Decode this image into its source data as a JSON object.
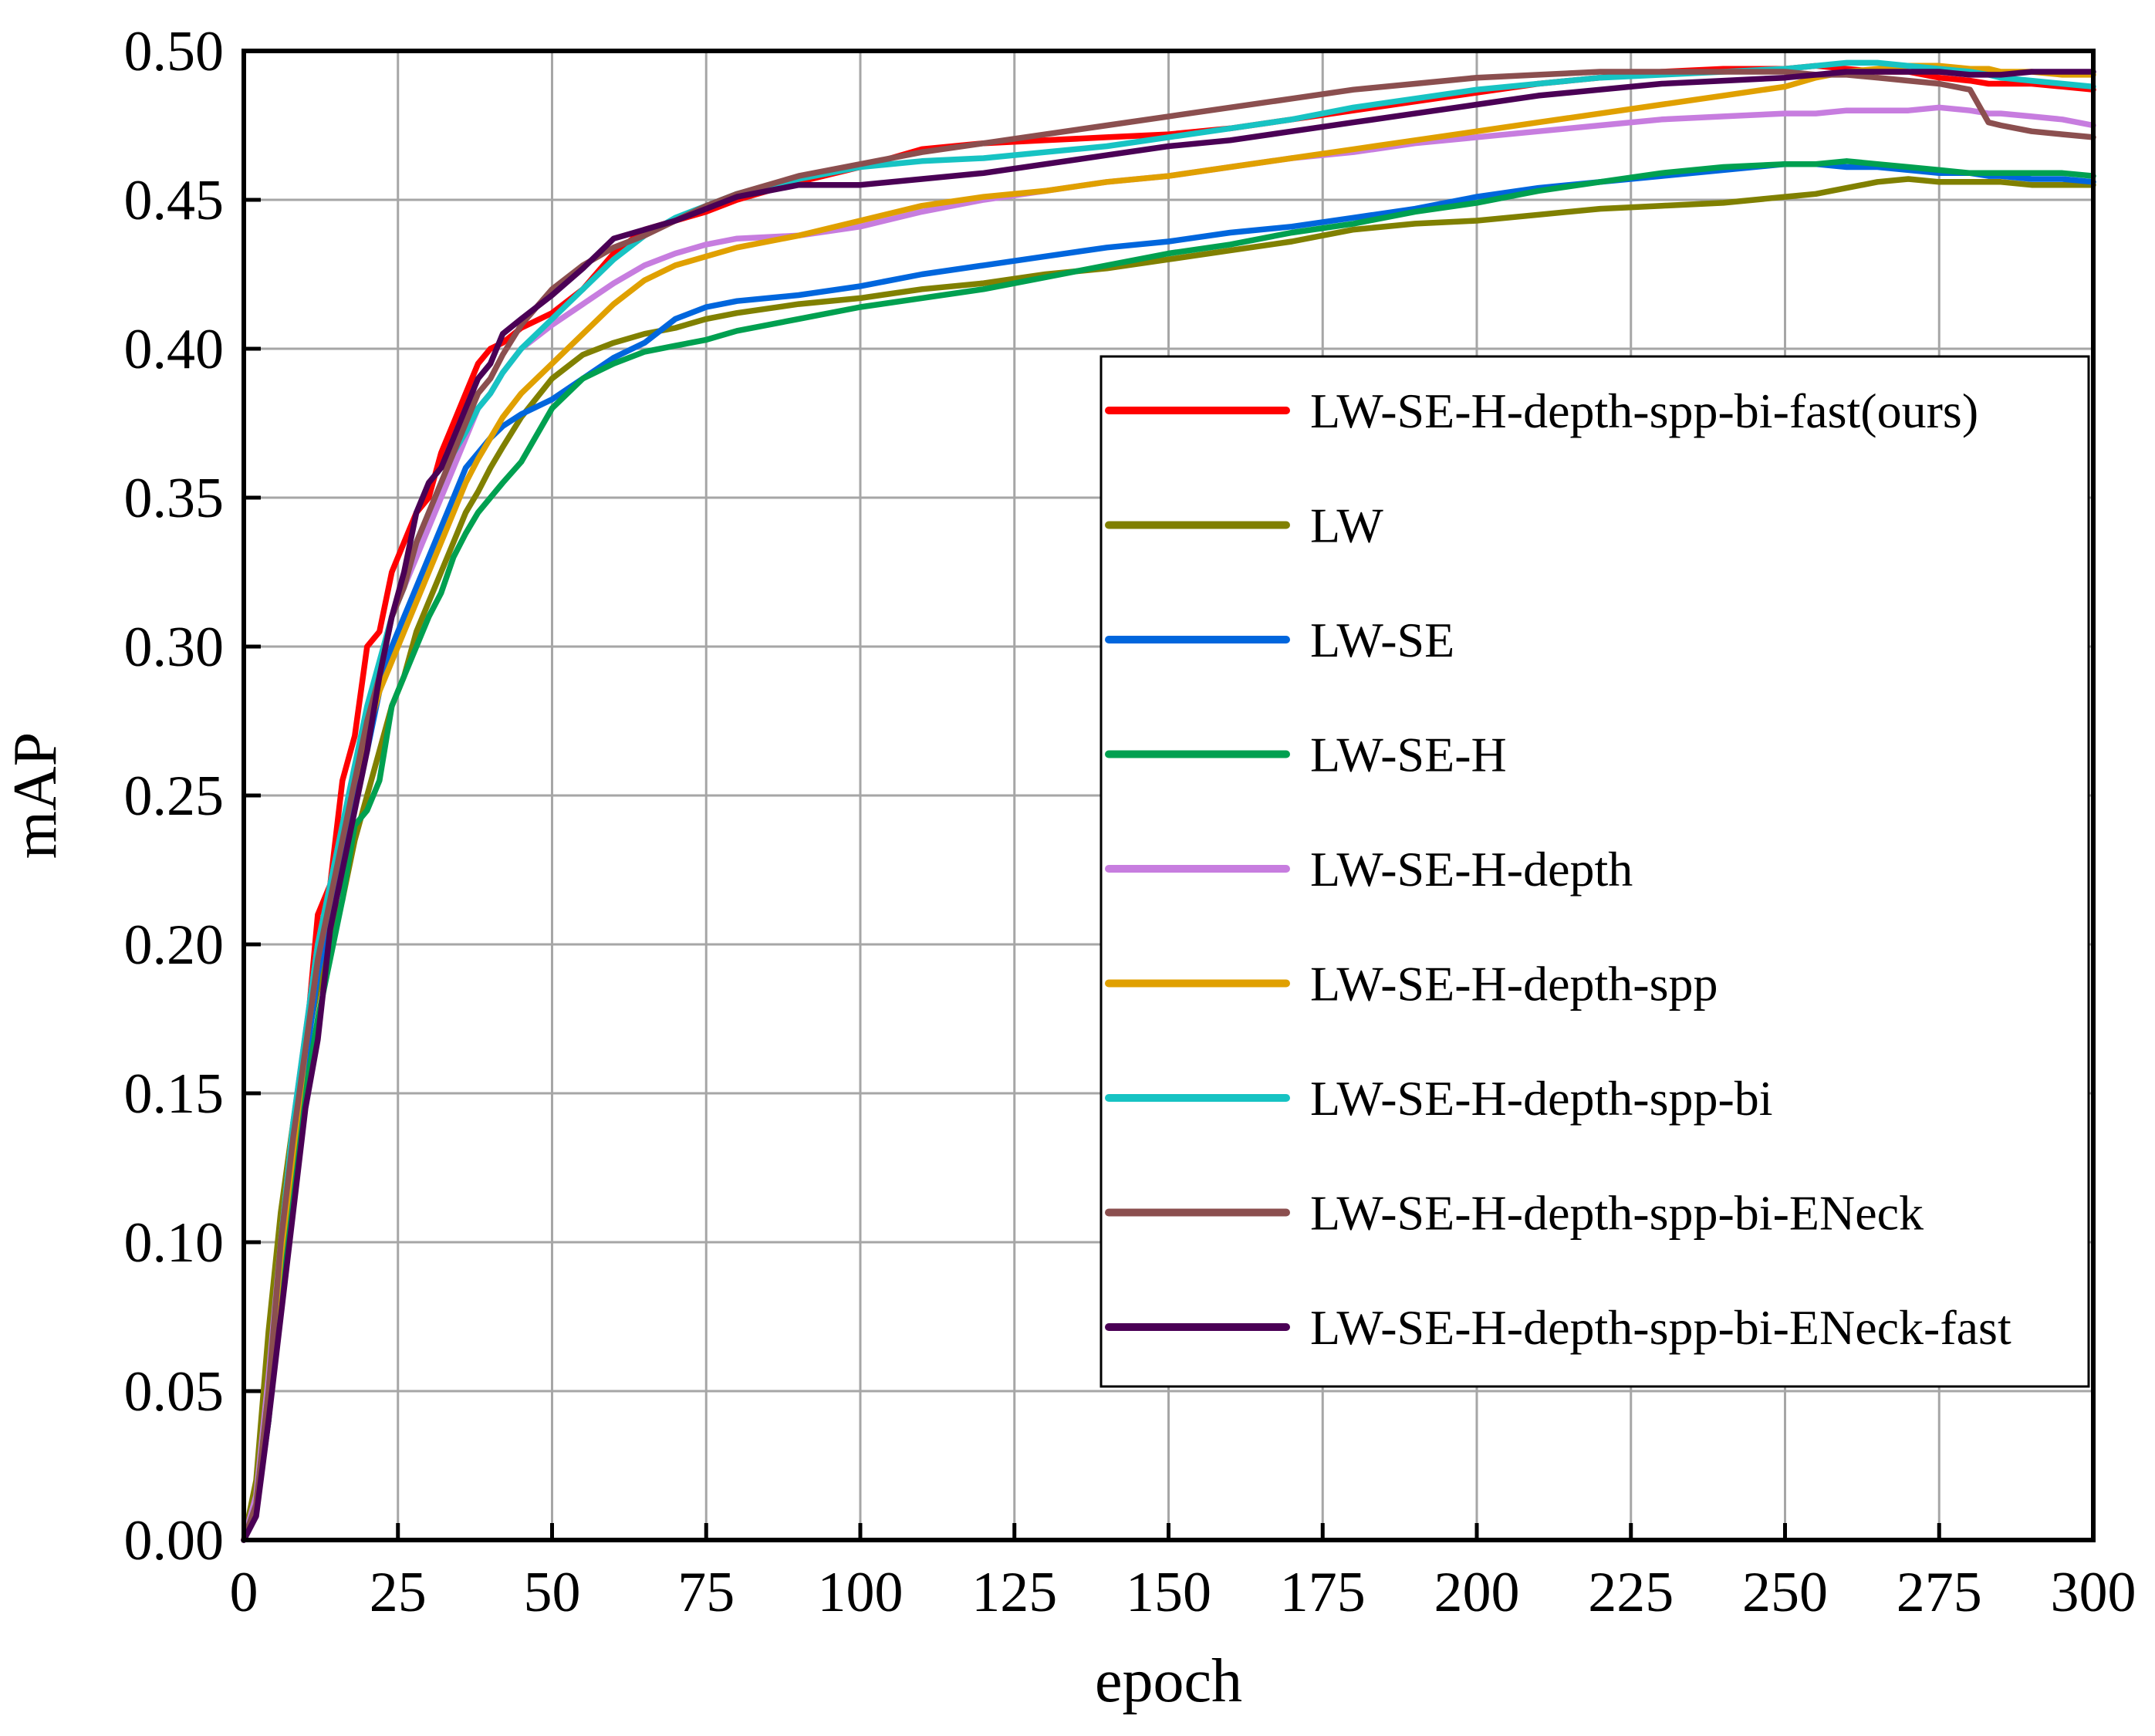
{
  "chart_data": {
    "type": "line",
    "title": "",
    "xlabel": "epoch",
    "ylabel": "mAP",
    "xlim": [
      0,
      300
    ],
    "ylim": [
      0.0,
      0.5
    ],
    "grid": true,
    "legend_position": "right-center",
    "x_ticks": [
      "0",
      "25",
      "50",
      "75",
      "100",
      "125",
      "150",
      "175",
      "200",
      "225",
      "250",
      "275",
      "300"
    ],
    "y_ticks": [
      "0.00",
      "0.05",
      "0.10",
      "0.15",
      "0.20",
      "0.25",
      "0.30",
      "0.35",
      "0.40",
      "0.45",
      "0.50"
    ],
    "x": [
      0,
      2,
      4,
      6,
      8,
      10,
      12,
      14,
      16,
      18,
      20,
      22,
      24,
      26,
      28,
      30,
      32,
      34,
      36,
      38,
      40,
      42,
      45,
      50,
      55,
      60,
      65,
      70,
      75,
      80,
      90,
      100,
      110,
      120,
      130,
      140,
      150,
      160,
      170,
      180,
      190,
      200,
      210,
      220,
      230,
      240,
      250,
      255,
      260,
      265,
      270,
      275,
      280,
      283,
      285,
      290,
      295,
      300
    ],
    "series": [
      {
        "name": "LW-SE-H-depth-spp-bi-fast(ours)",
        "color": "#ff0000",
        "values": [
          0,
          0.012,
          0.05,
          0.1,
          0.13,
          0.165,
          0.21,
          0.22,
          0.255,
          0.27,
          0.3,
          0.305,
          0.325,
          0.335,
          0.345,
          0.35,
          0.365,
          0.375,
          0.385,
          0.395,
          0.4,
          0.402,
          0.407,
          0.412,
          0.42,
          0.432,
          0.44,
          0.443,
          0.446,
          0.45,
          0.456,
          0.461,
          0.467,
          0.469,
          0.47,
          0.471,
          0.472,
          0.474,
          0.477,
          0.48,
          0.483,
          0.486,
          0.489,
          0.491,
          0.493,
          0.494,
          0.494,
          0.495,
          0.494,
          0.493,
          0.493,
          0.491,
          0.49,
          0.489,
          0.489,
          0.489,
          0.488,
          0.487
        ]
      },
      {
        "name": "LW",
        "color": "#808000",
        "values": [
          0,
          0.02,
          0.07,
          0.11,
          0.14,
          0.165,
          0.185,
          0.2,
          0.215,
          0.235,
          0.25,
          0.265,
          0.28,
          0.29,
          0.305,
          0.315,
          0.325,
          0.335,
          0.345,
          0.352,
          0.36,
          0.367,
          0.377,
          0.39,
          0.398,
          0.402,
          0.405,
          0.407,
          0.41,
          0.412,
          0.415,
          0.417,
          0.42,
          0.422,
          0.425,
          0.427,
          0.43,
          0.433,
          0.436,
          0.44,
          0.442,
          0.443,
          0.445,
          0.447,
          0.448,
          0.449,
          0.451,
          0.452,
          0.454,
          0.456,
          0.457,
          0.456,
          0.456,
          0.456,
          0.456,
          0.455,
          0.455,
          0.455
        ]
      },
      {
        "name": "LW-SE",
        "color": "#0066dd",
        "values": [
          0,
          0.01,
          0.04,
          0.09,
          0.125,
          0.16,
          0.19,
          0.21,
          0.23,
          0.25,
          0.265,
          0.285,
          0.3,
          0.31,
          0.32,
          0.33,
          0.34,
          0.35,
          0.36,
          0.365,
          0.37,
          0.374,
          0.378,
          0.383,
          0.39,
          0.397,
          0.402,
          0.41,
          0.414,
          0.416,
          0.418,
          0.421,
          0.425,
          0.428,
          0.431,
          0.434,
          0.436,
          0.439,
          0.441,
          0.444,
          0.447,
          0.451,
          0.454,
          0.456,
          0.458,
          0.46,
          0.462,
          0.462,
          0.461,
          0.461,
          0.46,
          0.459,
          0.459,
          0.458,
          0.458,
          0.457,
          0.457,
          0.456
        ]
      },
      {
        "name": "LW-SE-H",
        "color": "#00a050",
        "values": [
          0,
          0.01,
          0.04,
          0.08,
          0.115,
          0.15,
          0.175,
          0.195,
          0.215,
          0.24,
          0.245,
          0.255,
          0.28,
          0.29,
          0.3,
          0.31,
          0.318,
          0.33,
          0.338,
          0.345,
          0.35,
          0.355,
          0.362,
          0.38,
          0.39,
          0.395,
          0.399,
          0.401,
          0.403,
          0.406,
          0.41,
          0.414,
          0.417,
          0.42,
          0.424,
          0.428,
          0.432,
          0.435,
          0.439,
          0.442,
          0.446,
          0.449,
          0.453,
          0.456,
          0.459,
          0.461,
          0.462,
          0.462,
          0.463,
          0.462,
          0.461,
          0.46,
          0.459,
          0.459,
          0.459,
          0.459,
          0.459,
          0.458
        ]
      },
      {
        "name": "LW-SE-H-depth",
        "color": "#c77ddf",
        "values": [
          0,
          0.015,
          0.055,
          0.1,
          0.14,
          0.17,
          0.2,
          0.22,
          0.24,
          0.26,
          0.275,
          0.29,
          0.31,
          0.32,
          0.33,
          0.34,
          0.35,
          0.36,
          0.37,
          0.38,
          0.385,
          0.392,
          0.4,
          0.408,
          0.415,
          0.422,
          0.428,
          0.432,
          0.435,
          0.437,
          0.438,
          0.441,
          0.446,
          0.45,
          0.453,
          0.456,
          0.458,
          0.461,
          0.464,
          0.466,
          0.469,
          0.471,
          0.473,
          0.475,
          0.477,
          0.478,
          0.479,
          0.479,
          0.48,
          0.48,
          0.48,
          0.481,
          0.48,
          0.479,
          0.479,
          0.478,
          0.477,
          0.475
        ]
      },
      {
        "name": "LW-SE-H-depth-spp",
        "color": "#e0a000",
        "values": [
          0,
          0.012,
          0.05,
          0.095,
          0.13,
          0.165,
          0.195,
          0.215,
          0.24,
          0.255,
          0.27,
          0.285,
          0.295,
          0.305,
          0.315,
          0.325,
          0.335,
          0.345,
          0.355,
          0.363,
          0.37,
          0.377,
          0.385,
          0.395,
          0.405,
          0.415,
          0.423,
          0.428,
          0.431,
          0.434,
          0.438,
          0.443,
          0.448,
          0.451,
          0.453,
          0.456,
          0.458,
          0.461,
          0.464,
          0.467,
          0.47,
          0.473,
          0.476,
          0.479,
          0.482,
          0.485,
          0.488,
          0.491,
          0.493,
          0.494,
          0.495,
          0.495,
          0.494,
          0.494,
          0.493,
          0.493,
          0.492,
          0.492
        ]
      },
      {
        "name": "LW-SE-H-depth-spp-bi",
        "color": "#17c3c3",
        "values": [
          0,
          0.012,
          0.05,
          0.1,
          0.14,
          0.17,
          0.2,
          0.22,
          0.24,
          0.26,
          0.28,
          0.295,
          0.31,
          0.32,
          0.335,
          0.345,
          0.355,
          0.365,
          0.372,
          0.38,
          0.385,
          0.392,
          0.4,
          0.41,
          0.42,
          0.43,
          0.438,
          0.444,
          0.448,
          0.452,
          0.457,
          0.461,
          0.463,
          0.464,
          0.466,
          0.468,
          0.471,
          0.474,
          0.477,
          0.481,
          0.484,
          0.487,
          0.489,
          0.491,
          0.492,
          0.493,
          0.494,
          0.495,
          0.496,
          0.496,
          0.495,
          0.494,
          0.493,
          0.492,
          0.491,
          0.49,
          0.489,
          0.488
        ]
      },
      {
        "name": "LW-SE-H-depth-spp-bi-ENeck",
        "color": "#8b4f4f",
        "values": [
          0,
          0.012,
          0.05,
          0.1,
          0.135,
          0.165,
          0.195,
          0.215,
          0.235,
          0.255,
          0.275,
          0.29,
          0.31,
          0.32,
          0.335,
          0.345,
          0.355,
          0.365,
          0.375,
          0.385,
          0.39,
          0.398,
          0.408,
          0.42,
          0.428,
          0.434,
          0.438,
          0.443,
          0.448,
          0.452,
          0.458,
          0.462,
          0.466,
          0.469,
          0.472,
          0.475,
          0.478,
          0.481,
          0.484,
          0.487,
          0.489,
          0.491,
          0.492,
          0.493,
          0.493,
          0.493,
          0.493,
          0.492,
          0.492,
          0.491,
          0.49,
          0.489,
          0.487,
          0.476,
          0.475,
          0.473,
          0.472,
          0.471
        ]
      },
      {
        "name": "LW-SE-H-depth-spp-bi-ENeck-fast",
        "color": "#4a0055",
        "values": [
          0,
          0.008,
          0.04,
          0.075,
          0.11,
          0.145,
          0.168,
          0.205,
          0.225,
          0.245,
          0.265,
          0.29,
          0.31,
          0.325,
          0.345,
          0.355,
          0.36,
          0.37,
          0.38,
          0.39,
          0.395,
          0.405,
          0.41,
          0.418,
          0.427,
          0.437,
          0.44,
          0.443,
          0.447,
          0.451,
          0.455,
          0.455,
          0.457,
          0.459,
          0.462,
          0.465,
          0.468,
          0.47,
          0.473,
          0.476,
          0.479,
          0.482,
          0.485,
          0.487,
          0.489,
          0.49,
          0.491,
          0.492,
          0.493,
          0.493,
          0.493,
          0.493,
          0.492,
          0.492,
          0.492,
          0.493,
          0.493,
          0.493
        ]
      }
    ]
  }
}
